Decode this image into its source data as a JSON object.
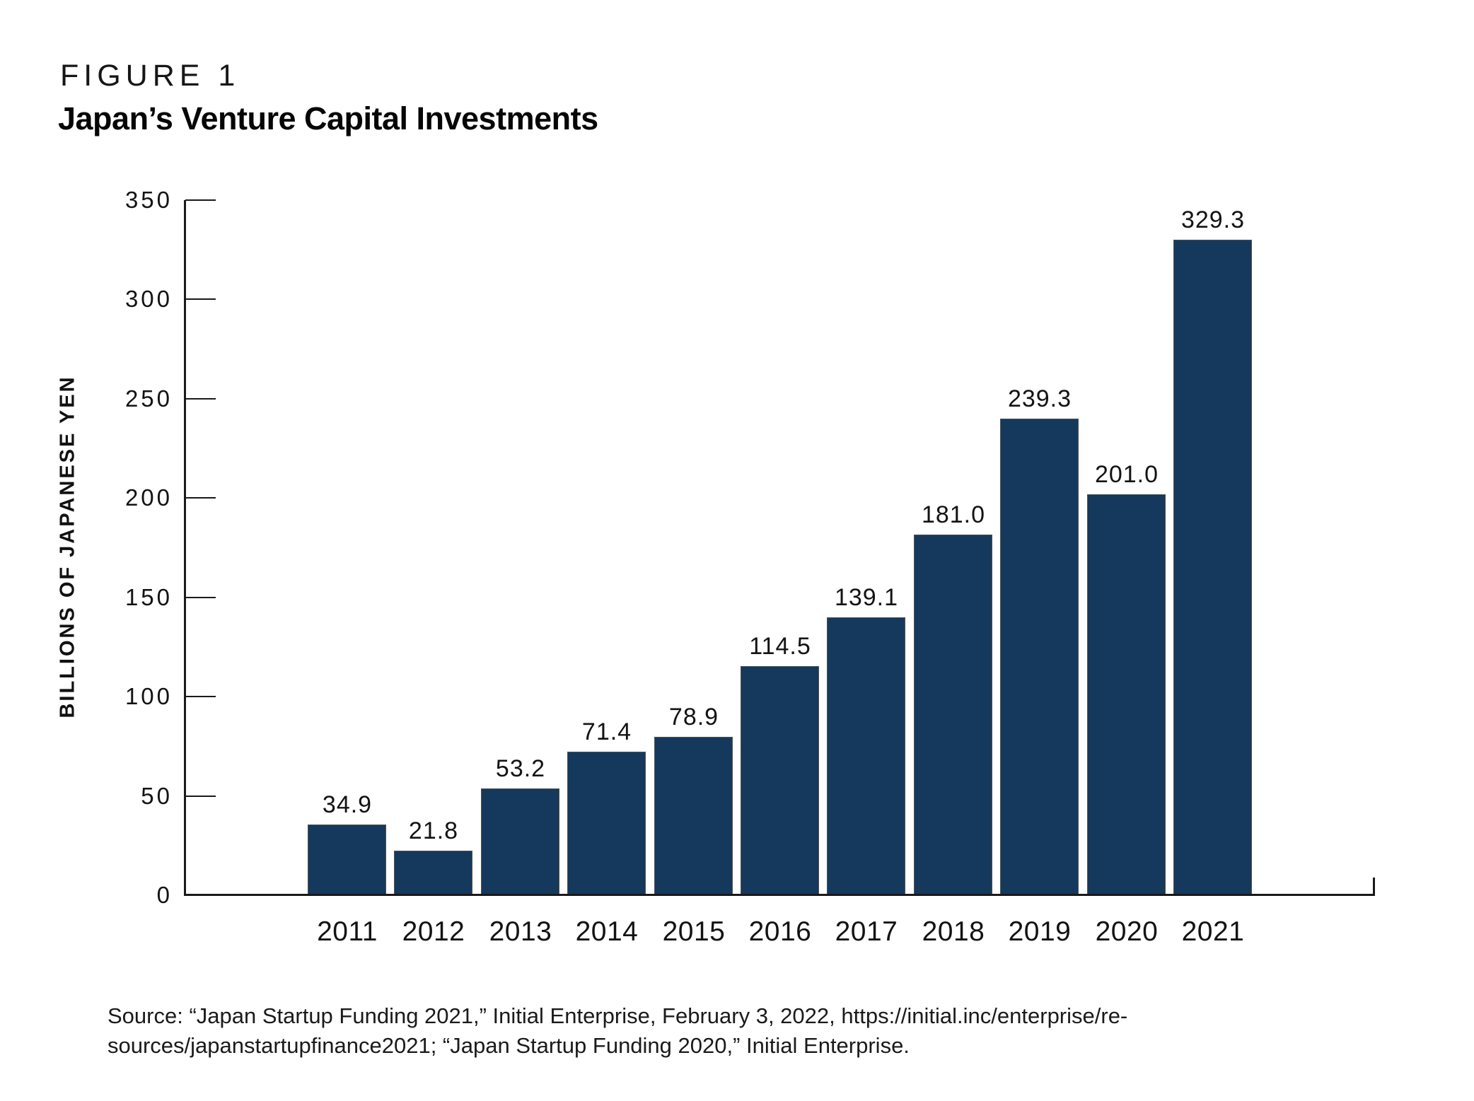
{
  "figure": {
    "label": "FIGURE 1",
    "title": "Japan’s Venture Capital Investments"
  },
  "chart_data": {
    "type": "bar",
    "title": "Japan's Venture Capital Investments",
    "categories": [
      "2011",
      "2012",
      "2013",
      "2014",
      "2015",
      "2016",
      "2017",
      "2018",
      "2019",
      "2020",
      "2021"
    ],
    "values": [
      34.9,
      21.8,
      53.2,
      71.4,
      78.9,
      114.5,
      139.1,
      181.0,
      239.3,
      201.0,
      329.3
    ],
    "value_labels": [
      "34.9",
      "21.8",
      "53.2",
      "71.4",
      "78.9",
      "114.5",
      "139.1",
      "181.0",
      "239.3",
      "201.0",
      "329.3"
    ],
    "xlabel": "",
    "ylabel": "BILLIONS OF JAPANESE YEN",
    "ylim": [
      0,
      350
    ],
    "yticks": [
      0,
      50,
      100,
      150,
      200,
      250,
      300,
      350
    ],
    "grid": "off",
    "legend": "none",
    "bar_color": "#14395C",
    "bar_border_color": "#55524d",
    "axis_color": "#1a1a1a"
  },
  "source": {
    "line1": "Source: “Japan Startup Funding 2021,” Initial Enterprise, February 3, 2022, https://initial.inc/enterprise/re-",
    "line2": "sources/japanstartupfinance2021; “Japan Startup Funding 2020,” Initial Enterprise."
  }
}
